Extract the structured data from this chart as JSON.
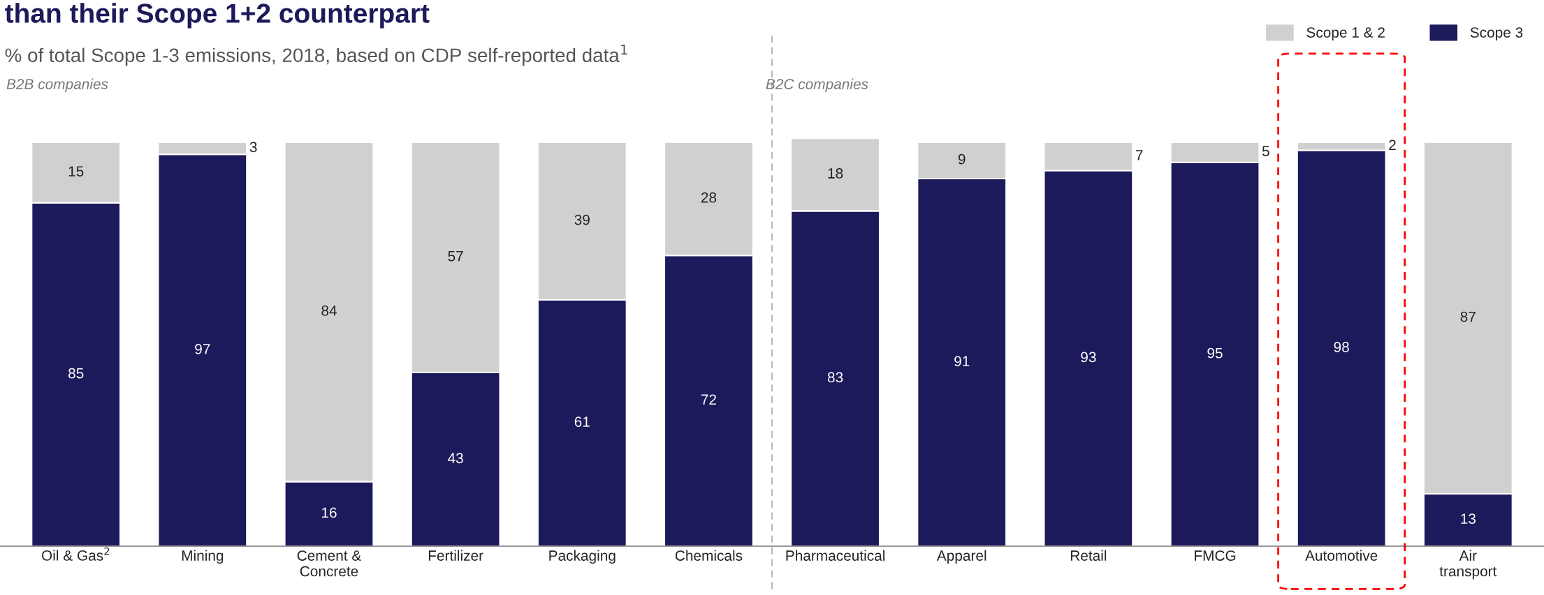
{
  "chart_data": {
    "type": "bar",
    "stacked": true,
    "title": "than their Scope 1+2 counterpart",
    "subtitle": "% of total Scope 1-3 emissions, 2018, based on CDP self-reported data$^{1}$",
    "categories": [
      "Oil & Gas$^{2}$",
      "Mining",
      "Cement &\nConcrete",
      "Fertilizer",
      "Packaging",
      "Chemicals",
      "Pharmaceutical",
      "Apparel",
      "Retail",
      "FMCG",
      "Automotive",
      "Air\ntransport"
    ],
    "series": [
      {
        "name": "Scope 3",
        "color": "#1c1a5a",
        "values": [
          85,
          97,
          16,
          43,
          61,
          72,
          83,
          91,
          93,
          95,
          98,
          13
        ]
      },
      {
        "name": "Scope 1 & 2",
        "color": "#d0d0d0",
        "values": [
          15,
          3,
          84,
          57,
          39,
          28,
          18,
          9,
          7,
          5,
          2,
          87
        ]
      }
    ],
    "data_labels": true,
    "legend": "top right",
    "tick_labels": "x",
    "grid": false,
    "annotations": [
      "B2B companies",
      "B2C companies"
    ]
  }
}
